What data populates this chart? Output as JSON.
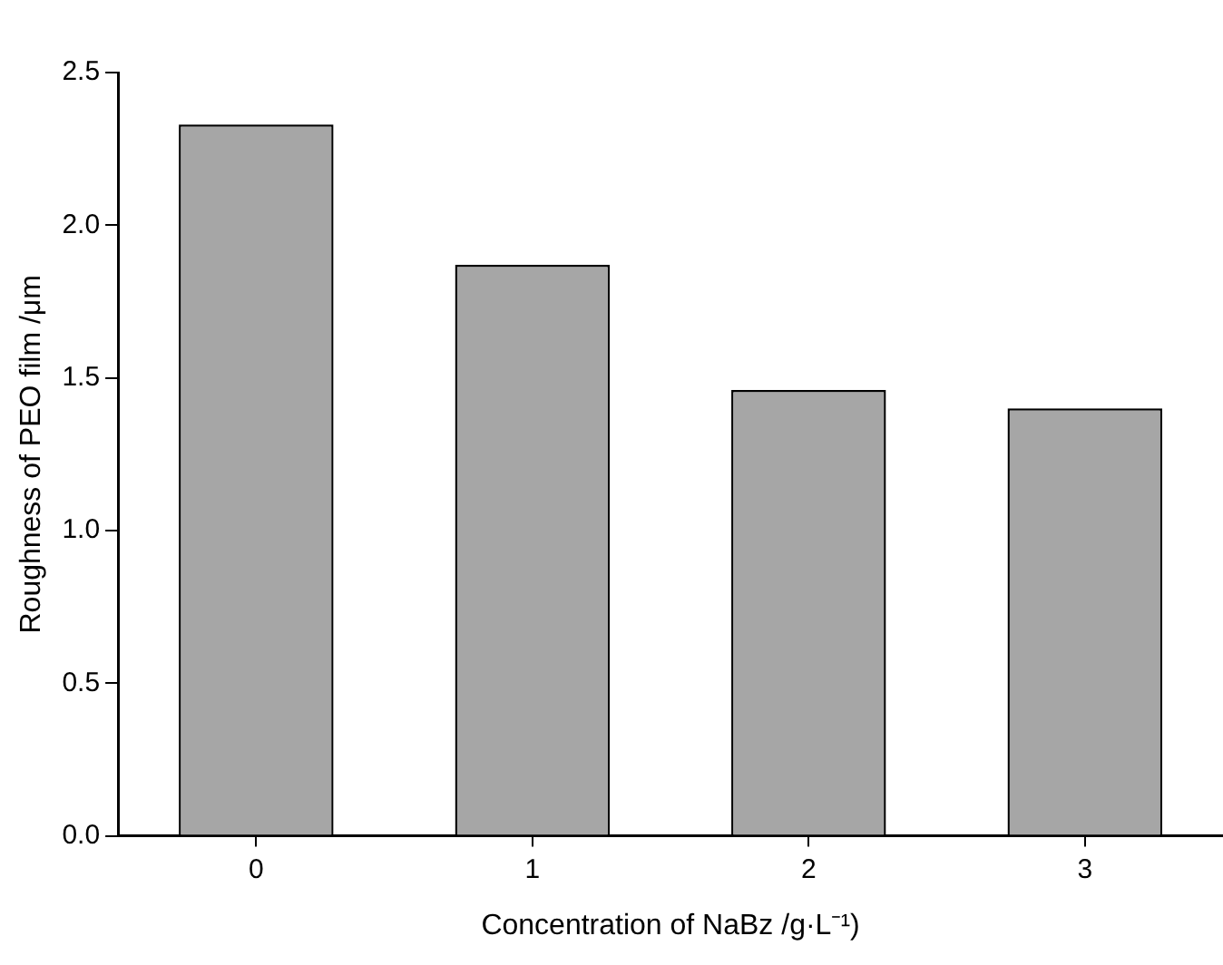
{
  "chart_data": {
    "type": "bar",
    "xlabel": "Concentration of NaBz /g·L⁻¹)",
    "ylabel": "Roughness of PEO film /μm",
    "categories": [
      "0",
      "1",
      "2",
      "3"
    ],
    "values": [
      2.33,
      1.87,
      1.46,
      1.4
    ],
    "color": "#a6a6a6",
    "ylim": [
      0,
      2.5
    ],
    "yticks": [
      {
        "value": 0,
        "label": "0.0"
      },
      0.5,
      {
        "value": 1,
        "label": "1.0"
      },
      1.5,
      {
        "value": 2,
        "label": "2.0"
      },
      2.5
    ],
    "grid": false,
    "legend": false
  }
}
